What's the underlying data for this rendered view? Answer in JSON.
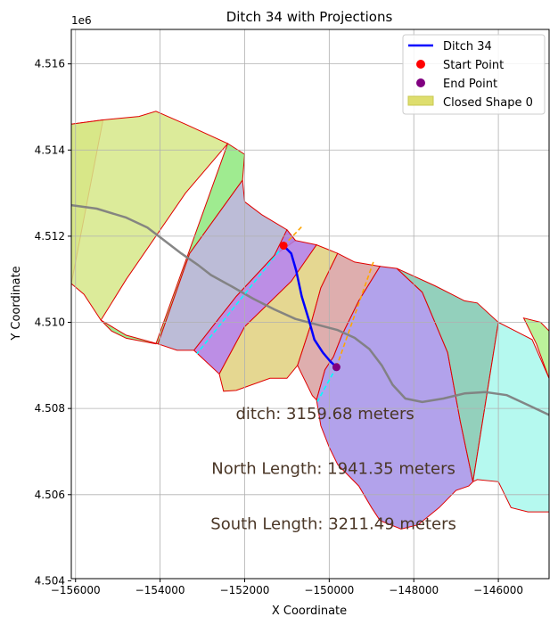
{
  "chart_data": {
    "type": "line",
    "title": "Ditch 34 with Projections",
    "xlabel": "X Coordinate",
    "ylabel": "Y Coordinate",
    "y_offset_label": "1e6",
    "xlim": [
      -156100,
      -144800
    ],
    "ylim": [
      4504050,
      4516800
    ],
    "grid": true,
    "legend_position": "top-right",
    "xticks": [
      -156000,
      -154000,
      -152000,
      -150000,
      -148000,
      -146000
    ],
    "xtick_labels": [
      "−156000",
      "−154000",
      "−152000",
      "−150000",
      "−148000",
      "−146000"
    ],
    "yticks": [
      4504000,
      4506000,
      4508000,
      4510000,
      4512000,
      4514000,
      4516000
    ],
    "ytick_labels": [
      "4.504",
      "4.506",
      "4.508",
      "4.510",
      "4.512",
      "4.514",
      "4.516"
    ],
    "legend": [
      {
        "label": "Ditch 34",
        "kind": "line",
        "color": "#0000ff"
      },
      {
        "label": "Start Point",
        "kind": "marker",
        "color": "#ff0000"
      },
      {
        "label": "End Point",
        "kind": "marker",
        "color": "#800080"
      },
      {
        "label": "Closed Shape 0",
        "kind": "patch",
        "color": "#dede6e"
      }
    ],
    "annotations": [
      {
        "text": "ditch: 3159.68 meters",
        "x": -150100,
        "y": 4507750
      },
      {
        "text": "North Length: 1941.35 meters",
        "x": -149900,
        "y": 4506480
      },
      {
        "text": "South Length: 3211.49 meters",
        "x": -149900,
        "y": 4505200
      }
    ],
    "series": [
      {
        "name": "Ditch 34",
        "color": "#0000ff",
        "x": [
          -151080,
          -150900,
          -150780,
          -150650,
          -150480,
          -150350,
          -150150,
          -149980,
          -149830
        ],
        "y": [
          4511780,
          4511600,
          4511200,
          4510600,
          4510050,
          4509600,
          4509300,
          4509100,
          4508960
        ]
      },
      {
        "name": "Start Point",
        "color": "#ff0000",
        "x": [
          -151080
        ],
        "y": [
          4511780
        ]
      },
      {
        "name": "End Point",
        "color": "#800080",
        "x": [
          -149830
        ],
        "y": [
          4508960
        ]
      }
    ],
    "extra_lines": [
      {
        "color": "#808080",
        "x": [
          -156100,
          -155500,
          -154800,
          -154300,
          -153900,
          -153500,
          -153100,
          -152800,
          -152300,
          -151800,
          -151300,
          -150800,
          -150300,
          -149800,
          -149400,
          -149050,
          -148750,
          -148500,
          -148200,
          -147800,
          -147300,
          -146800,
          -146300,
          -145800,
          -145300,
          -144800
        ],
        "y": [
          4512720,
          4512640,
          4512430,
          4512200,
          4511900,
          4511600,
          4511330,
          4511100,
          4510830,
          4510550,
          4510300,
          4510080,
          4509950,
          4509820,
          4509640,
          4509380,
          4508990,
          4508550,
          4508230,
          4508150,
          4508230,
          4508350,
          4508380,
          4508310,
          4508080,
          4507850
        ]
      },
      {
        "color": "#00ffff",
        "dashed": true,
        "x": [
          -151080,
          -153130
        ],
        "y": [
          4511780,
          4509270
        ]
      },
      {
        "color": "#00ffff",
        "dashed": true,
        "x": [
          -149830,
          -150280
        ],
        "y": [
          4508960,
          4508160
        ]
      },
      {
        "color": "#ffa500",
        "dashed": true,
        "x": [
          -151080,
          -150650
        ],
        "y": [
          4511780,
          4512220
        ]
      },
      {
        "color": "#ffa500",
        "dashed": true,
        "x": [
          -149830,
          -148950
        ],
        "y": [
          4508960,
          4511420
        ]
      }
    ],
    "regions": [
      {
        "name": "Closed Shape 0",
        "color": "#dede6e",
        "x": [
          -156100,
          -155350,
          -156100
        ],
        "y": [
          4514600,
          4514700,
          4510900
        ]
      },
      {
        "color": "#d6e888",
        "x": [
          -155350,
          -154500,
          -154100,
          -153400,
          -152400,
          -153400,
          -154800,
          -155400,
          -155800,
          -156100,
          -156100
        ],
        "y": [
          4514700,
          4514780,
          4514900,
          4514600,
          4514150,
          4513000,
          4511000,
          4510050,
          4510650,
          4510900,
          4514600
        ]
      },
      {
        "color": "#8ee87c",
        "x": [
          -152400,
          -152000,
          -152050,
          -153300,
          -154050,
          -154800,
          -155400,
          -155150,
          -154800,
          -154100
        ],
        "y": [
          4514150,
          4513900,
          4513300,
          4511600,
          4509500,
          4509700,
          4510050,
          4509800,
          4509630,
          4509500
        ]
      },
      {
        "color": "#b0b0d0",
        "x": [
          -152050,
          -152000,
          -151600,
          -151000,
          -150800,
          -151300,
          -152200,
          -153200,
          -153600,
          -154050,
          -153300
        ],
        "y": [
          4513300,
          4512800,
          4512500,
          4512150,
          4511900,
          4511550,
          4510600,
          4509350,
          4509350,
          4509500,
          4511600
        ]
      },
      {
        "color": "#b07ae0",
        "x": [
          -151000,
          -150800,
          -150300,
          -150900,
          -152000,
          -152600,
          -153200,
          -152200,
          -151300
        ],
        "y": [
          4512150,
          4511900,
          4511800,
          4510950,
          4509900,
          4508800,
          4509350,
          4510600,
          4511550
        ]
      },
      {
        "color": "#e0d07e",
        "x": [
          -150300,
          -150050,
          -149800,
          -150200,
          -150450,
          -150750,
          -151000,
          -151400,
          -152200,
          -152500,
          -152600,
          -152000,
          -150900
        ],
        "y": [
          4511800,
          4511700,
          4511600,
          4510800,
          4509900,
          4509000,
          4508700,
          4508700,
          4508420,
          4508400,
          4508800,
          4509900,
          4510950
        ]
      },
      {
        "color": "#d8a0a0",
        "x": [
          -149800,
          -149400,
          -148800,
          -149300,
          -149700,
          -149900,
          -150100,
          -150300,
          -150400,
          -150750,
          -150450,
          -150200
        ],
        "y": [
          4511600,
          4511400,
          4511300,
          4510500,
          4509700,
          4509200,
          4508900,
          4508200,
          4508300,
          4509000,
          4509900,
          4510800
        ]
      },
      {
        "color": "#a592e8",
        "x": [
          -148800,
          -148400,
          -147800,
          -147200,
          -146900,
          -146600,
          -146700,
          -147000,
          -147400,
          -147900,
          -148300,
          -148800,
          -149000,
          -149300,
          -149800,
          -150000,
          -150200,
          -150300,
          -150100,
          -149900,
          -149700,
          -149300
        ],
        "y": [
          4511300,
          4511250,
          4510700,
          4509300,
          4507700,
          4506300,
          4506200,
          4506100,
          4505700,
          4505300,
          4505200,
          4505400,
          4505700,
          4506200,
          4506700,
          4507100,
          4507600,
          4508200,
          4508900,
          4509200,
          4509700,
          4510500
        ]
      },
      {
        "color": "#80c8b0",
        "x": [
          -148400,
          -147500,
          -146800,
          -146500,
          -146000,
          -146600,
          -146900,
          -147200,
          -147800
        ],
        "y": [
          4511250,
          4510850,
          4510500,
          4510450,
          4510000,
          4506300,
          4507700,
          4509300,
          4510700
        ]
      },
      {
        "color": "#a8f8ec",
        "x": [
          -146000,
          -145600,
          -145200,
          -144800,
          -144800,
          -145300,
          -145700,
          -146000,
          -146500,
          -146600
        ],
        "y": [
          4510000,
          4509800,
          4509600,
          4508700,
          4505600,
          4505600,
          4505700,
          4506300,
          4506350,
          4506300
        ]
      },
      {
        "color": "#b0f08a",
        "x": [
          -145400,
          -145000,
          -144800,
          -144800,
          -145100
        ],
        "y": [
          4510100,
          4510000,
          4509800,
          4508700,
          4509500
        ]
      }
    ]
  }
}
